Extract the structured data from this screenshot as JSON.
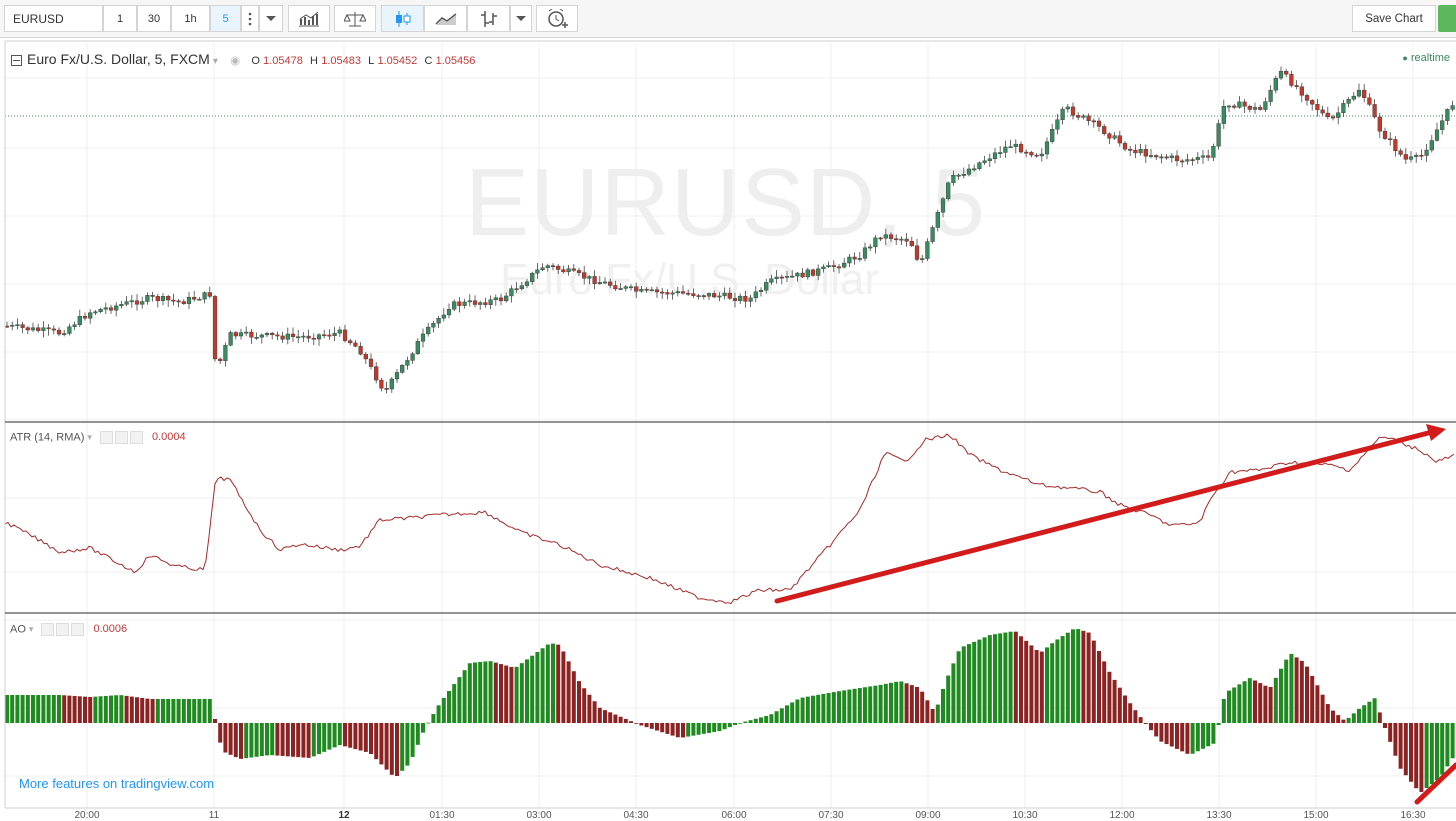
{
  "toolbar": {
    "symbol": "EURUSD",
    "intervals": [
      "1",
      "30",
      "1h",
      "5"
    ],
    "active_interval": "5",
    "save_chart": "Save Chart"
  },
  "watermark": {
    "symbol": "EURUSD, 5",
    "description": "Euro Fx/U.S. Dollar"
  },
  "main_legend": {
    "title": "Euro Fx/U.S. Dollar, 5, FXCM",
    "o_label": "O",
    "o_value": "1.05478",
    "h_label": "H",
    "h_value": "1.05483",
    "l_label": "L",
    "l_value": "1.05452",
    "c_label": "C",
    "c_value": "1.05456"
  },
  "realtime": "realtime",
  "atr": {
    "label": "ATR (14, RMA)",
    "value": "0.0004"
  },
  "ao": {
    "label": "AO",
    "value": "0.0006"
  },
  "footer_link": "More features on tradingview.com",
  "x_axis": [
    "20:00",
    "11",
    "12",
    "01:30",
    "03:00",
    "04:30",
    "06:00",
    "07:30",
    "09:00",
    "10:30",
    "12:00",
    "13:30",
    "15:00",
    "16:30"
  ],
  "colors": {
    "up": "#3a8a5f",
    "down": "#c0392b",
    "ao_up": "#1f8a1f",
    "ao_down": "#8b2323",
    "atr_line": "#a52a2a",
    "arrow": "#d31b1b"
  },
  "icons": [
    "more-vert-icon",
    "chevron-down-icon",
    "indicators-icon",
    "compare-icon",
    "candles-icon",
    "area-icon",
    "bars-icon",
    "alert-icon",
    "collapse-icon",
    "eye-icon",
    "gear-icon",
    "close-icon"
  ],
  "chart_data": [
    {
      "type": "candlestick",
      "title": "Euro Fx/U.S. Dollar, 5, FXCM",
      "x_ticks": [
        "20:00",
        "11",
        "12",
        "01:30",
        "03:00",
        "04:30",
        "06:00",
        "07:30",
        "09:00",
        "10:30",
        "12:00",
        "13:30",
        "15:00",
        "16:30"
      ],
      "ohlc_last": {
        "open": 1.05478,
        "high": 1.05483,
        "low": 1.05452,
        "close": 1.05456
      },
      "grid": true
    },
    {
      "type": "line",
      "name": "ATR (14, RMA)",
      "last_value": 0.0004
    },
    {
      "type": "bar",
      "name": "AO",
      "last_value": 0.0006
    }
  ]
}
